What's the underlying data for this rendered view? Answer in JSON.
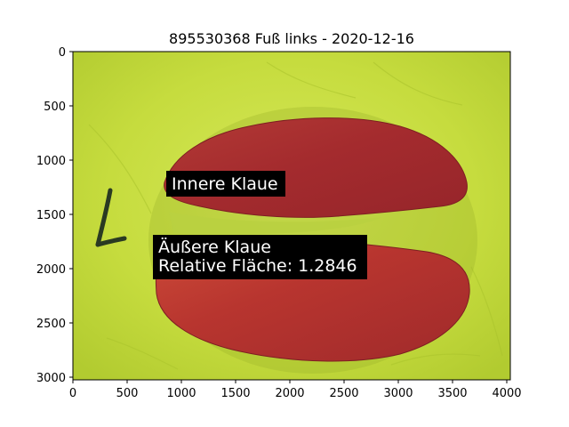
{
  "figure": {
    "title": "895530368 Fuß links - 2020-12-16"
  },
  "axes": {
    "x_ticks": [
      "0",
      "500",
      "1000",
      "1500",
      "2000",
      "2500",
      "3000",
      "3500",
      "4000"
    ],
    "y_ticks": [
      "0",
      "500",
      "1000",
      "1500",
      "2000",
      "2500",
      "3000"
    ],
    "xlim": [
      0,
      4032
    ],
    "ylim": [
      3024,
      0
    ]
  },
  "image": {
    "description_colors": {
      "background": "#c5dd3a",
      "claw_overlay": "#a52a2a",
      "annotation_box": "#000000",
      "annotation_text": "#ffffff"
    },
    "hand_mark": "L"
  },
  "annotations": {
    "inner": {
      "label": "Innere Klaue"
    },
    "outer": {
      "line1": "Äußere Klaue",
      "line2": "Relative Fläche: 1.2846"
    }
  }
}
